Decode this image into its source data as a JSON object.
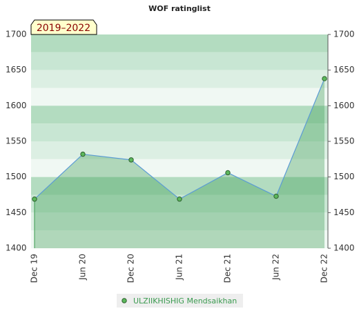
{
  "chart_data": {
    "type": "area-line",
    "title": "WOF ratinglist",
    "badge": "2019–2022",
    "categories": [
      "Dec 19",
      "Jun 20",
      "Dec 20",
      "Jun 21",
      "Dec 21",
      "Jun 22",
      "Dec 22"
    ],
    "series": [
      {
        "name": "ULZIIKHISHIG Mendsaikhan",
        "color": "#3a9a4f",
        "line_color": "#5b9bd5",
        "values": [
          1469,
          1532,
          1524,
          1469,
          1506,
          1473,
          1638
        ]
      }
    ],
    "ylim": [
      1400,
      1700
    ],
    "yticks": [
      1400,
      1450,
      1500,
      1550,
      1600,
      1650,
      1700
    ],
    "band_colors": [
      "#b3dcc0",
      "#c8e6d3",
      "#dcefe3",
      "#f0f8f3"
    ]
  }
}
